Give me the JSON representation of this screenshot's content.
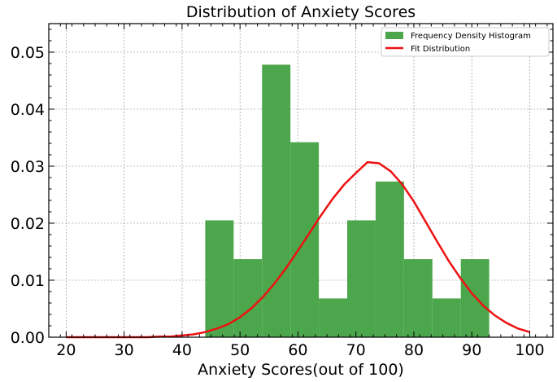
{
  "chart_data": {
    "type": "bar",
    "title": "Distribution of Anxiety Scores",
    "xlabel": "Anxiety Scores(out of 100)",
    "ylabel": "",
    "xlim": [
      17,
      104
    ],
    "ylim": [
      0,
      0.055
    ],
    "xticks": [
      20,
      30,
      40,
      50,
      60,
      70,
      80,
      90,
      100
    ],
    "yticks": [
      0.0,
      0.01,
      0.02,
      0.03,
      0.04,
      0.05
    ],
    "xtick_labels": [
      "20",
      "30",
      "40",
      "50",
      "60",
      "70",
      "80",
      "90",
      "100"
    ],
    "ytick_labels": [
      "0.00",
      "0.01",
      "0.02",
      "0.03",
      "0.04",
      "0.05"
    ],
    "grid": true,
    "legend_placement": "top-right",
    "histogram": {
      "name": "Frequency Density Histogram",
      "color": "#4ca64c",
      "bin_edges": [
        44.0,
        48.9,
        53.8,
        58.7,
        63.6,
        68.5,
        73.4,
        78.3,
        83.2,
        88.1,
        93.0
      ],
      "values": [
        0.0205,
        0.0137,
        0.0478,
        0.0342,
        0.0068,
        0.0205,
        0.0273,
        0.0137,
        0.0068,
        0.0137
      ]
    },
    "fit_line": {
      "name": "Fit Distribution",
      "color": "#ee1111",
      "x": [
        20,
        22,
        24,
        26,
        28,
        30,
        32,
        34,
        36,
        38,
        40,
        42,
        44,
        46,
        48,
        50,
        52,
        54,
        56,
        58,
        60,
        62,
        64,
        66,
        68,
        70,
        72,
        74,
        76,
        78,
        80,
        82,
        84,
        86,
        88,
        90,
        92,
        94,
        96,
        98,
        100
      ],
      "y": [
        0.0,
        0.0,
        0.0,
        0.0,
        0.0,
        0.0,
        0.0,
        0.0,
        0.0001,
        0.0001,
        0.0003,
        0.0005,
        0.0009,
        0.0015,
        0.0023,
        0.0035,
        0.0051,
        0.0071,
        0.0095,
        0.0122,
        0.0152,
        0.0183,
        0.0214,
        0.0243,
        0.0268,
        0.0288,
        0.0307,
        0.0305,
        0.0291,
        0.0268,
        0.0238,
        0.0203,
        0.0168,
        0.0134,
        0.0104,
        0.0077,
        0.0055,
        0.0038,
        0.0025,
        0.0015,
        0.0009
      ]
    }
  }
}
